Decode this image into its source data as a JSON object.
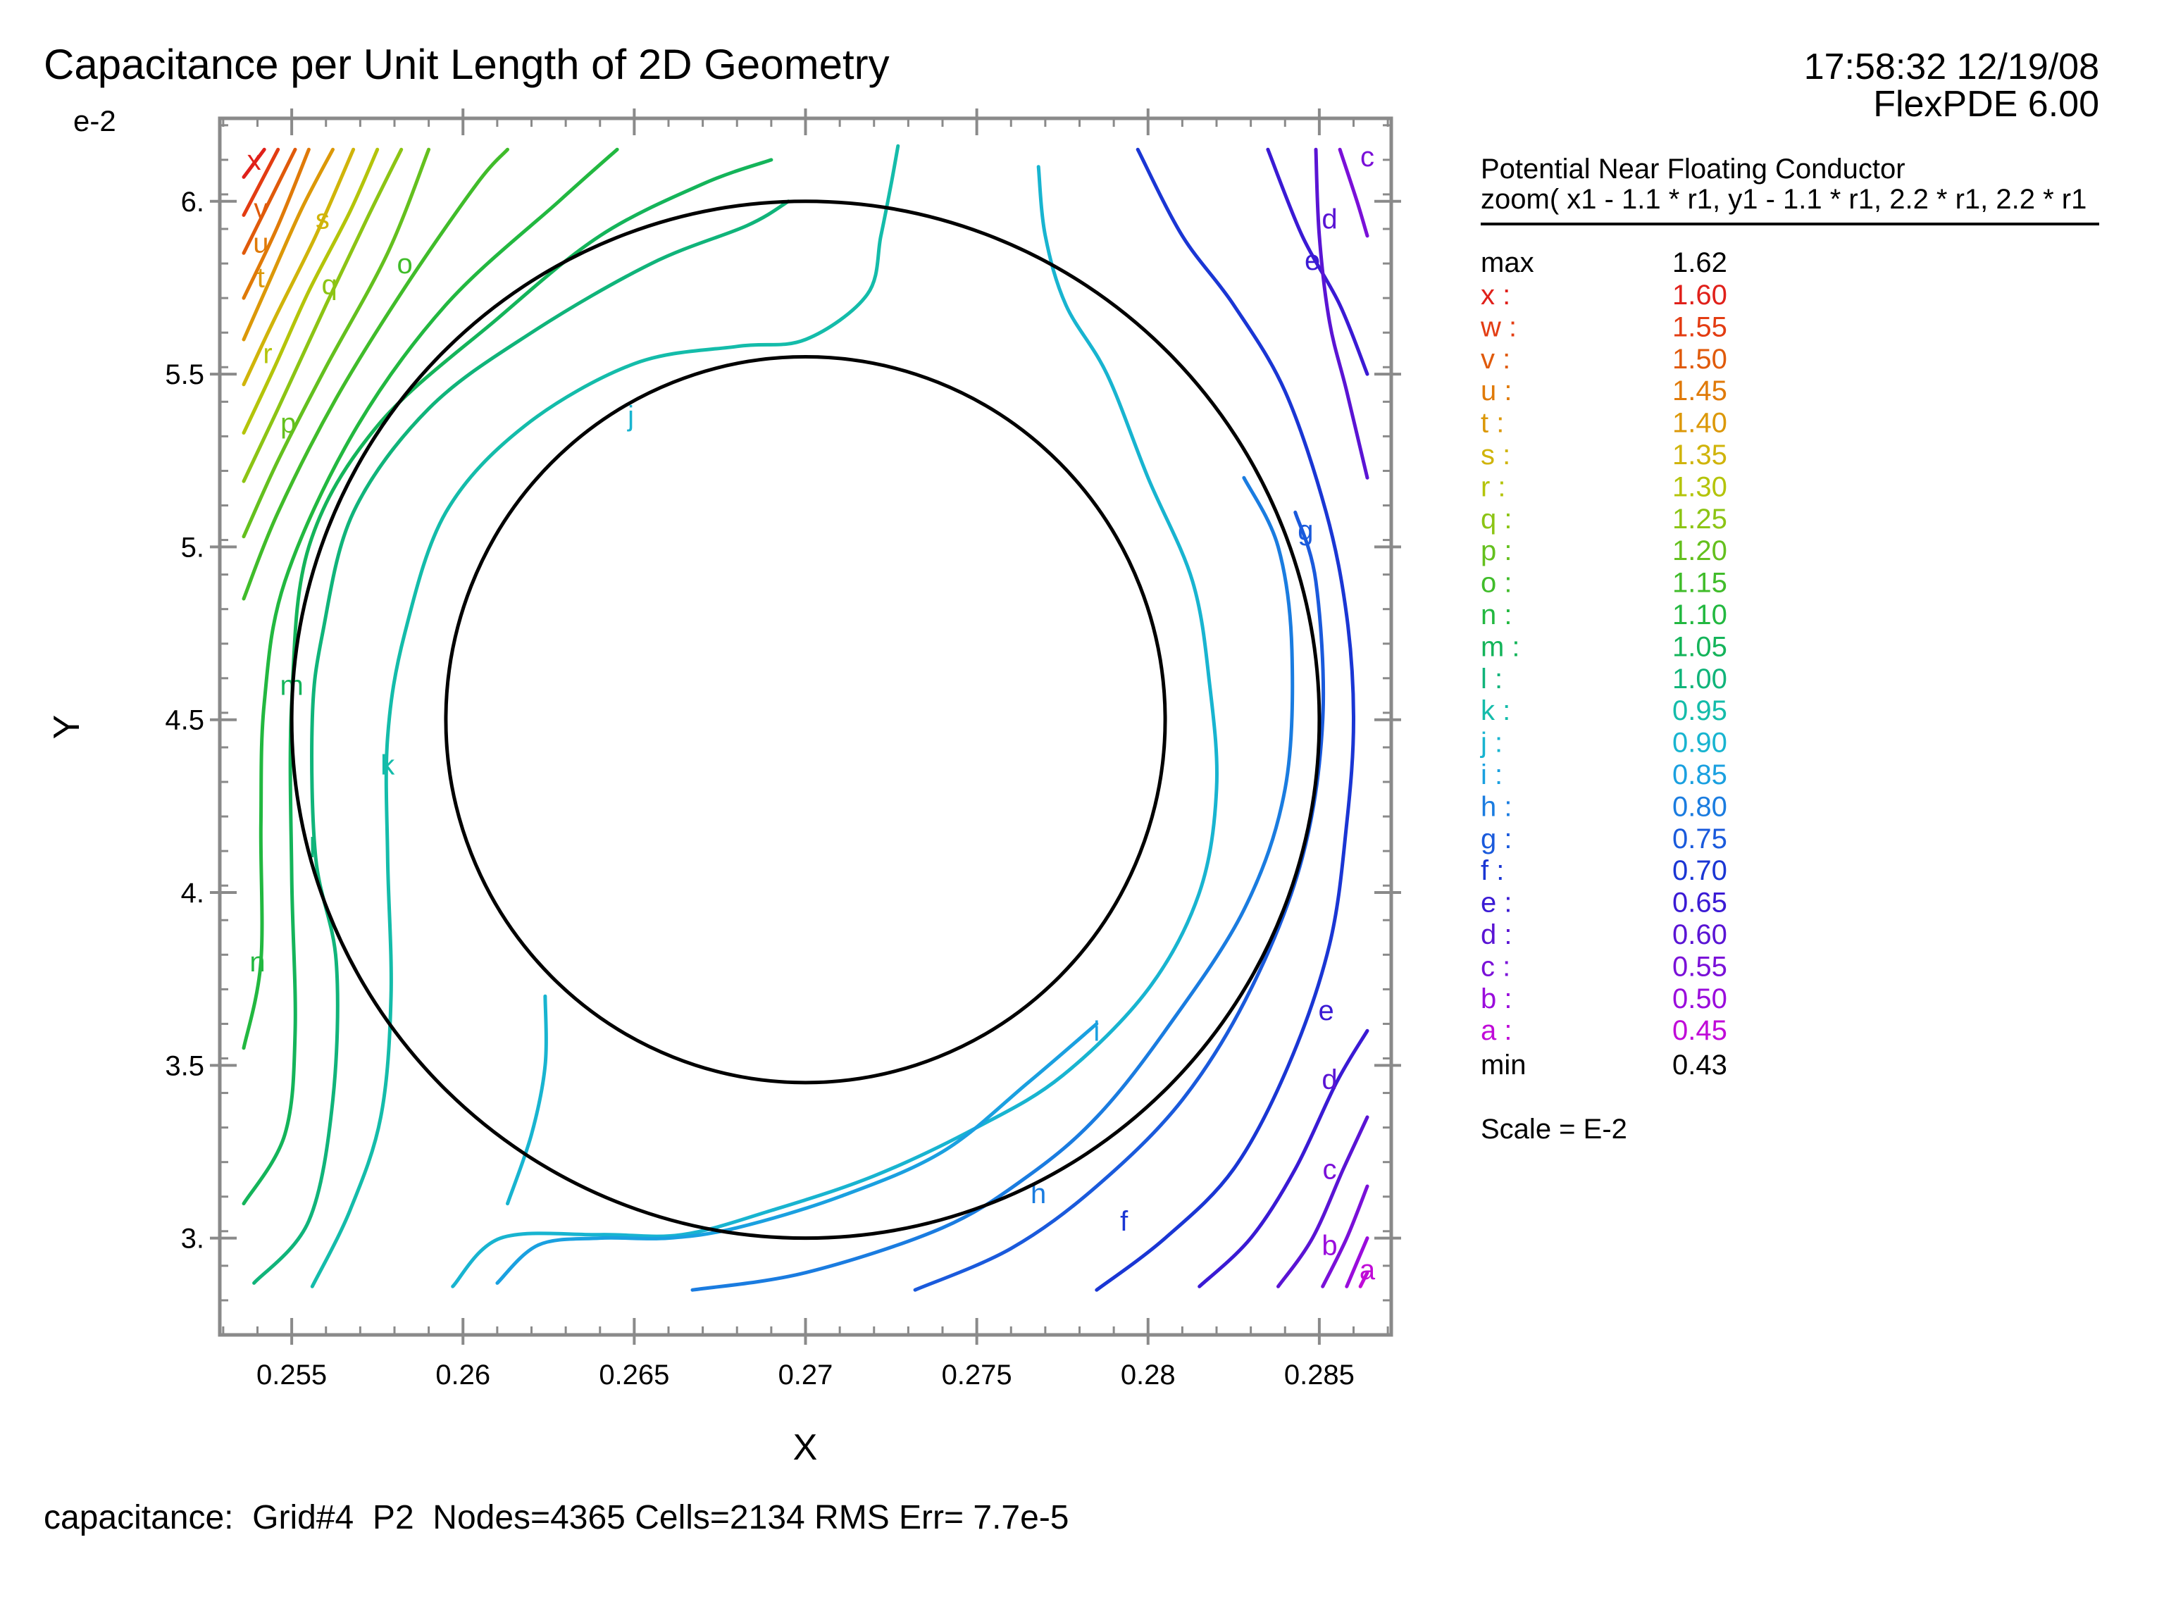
{
  "header": {
    "title": "Capacitance per Unit Length of 2D Geometry",
    "timestamp": "17:58:32 12/19/08",
    "software": "FlexPDE 6.00"
  },
  "footer": {
    "status": "capacitance:  Grid#4  P2  Nodes=4365 Cells=2134 RMS Err= 7.7e-5"
  },
  "legend": {
    "heading": "Potential Near Floating Conductor",
    "subheading": "zoom( x1 - 1.1 * r1, y1 - 1.1 * r1, 2.2 * r1, 2.2 * r1",
    "max_label": "max",
    "max_value": "1.62",
    "min_label": "min",
    "min_value": "0.43",
    "scale": "Scale = E-2",
    "items": [
      {
        "letter": "x",
        "value": "1.60",
        "color": "#e0201a"
      },
      {
        "letter": "w",
        "value": "1.55",
        "color": "#e33c12"
      },
      {
        "letter": "v",
        "value": "1.50",
        "color": "#e05a0a"
      },
      {
        "letter": "u",
        "value": "1.45",
        "color": "#e07a08"
      },
      {
        "letter": "t",
        "value": "1.40",
        "color": "#dc9808"
      },
      {
        "letter": "s",
        "value": "1.35",
        "color": "#d0b40a"
      },
      {
        "letter": "r",
        "value": "1.30",
        "color": "#b4c40a"
      },
      {
        "letter": "q",
        "value": "1.25",
        "color": "#8cc414"
      },
      {
        "letter": "p",
        "value": "1.20",
        "color": "#64c01e"
      },
      {
        "letter": "o",
        "value": "1.15",
        "color": "#40bc2a"
      },
      {
        "letter": "n",
        "value": "1.10",
        "color": "#22b840"
      },
      {
        "letter": "m",
        "value": "1.05",
        "color": "#14b45a"
      },
      {
        "letter": "l",
        "value": "1.00",
        "color": "#10b47a"
      },
      {
        "letter": "k",
        "value": "0.95",
        "color": "#14bcaa"
      },
      {
        "letter": "j",
        "value": "0.90",
        "color": "#18b4d0"
      },
      {
        "letter": "i",
        "value": "0.85",
        "color": "#1aa0e0"
      },
      {
        "letter": "h",
        "value": "0.80",
        "color": "#1a7ce0"
      },
      {
        "letter": "g",
        "value": "0.75",
        "color": "#1a5adc"
      },
      {
        "letter": "f",
        "value": "0.70",
        "color": "#1a36d4"
      },
      {
        "letter": "e",
        "value": "0.65",
        "color": "#3a1ad4"
      },
      {
        "letter": "d",
        "value": "0.60",
        "color": "#5a14d4"
      },
      {
        "letter": "c",
        "value": "0.55",
        "color": "#7a10d8"
      },
      {
        "letter": "b",
        "value": "0.50",
        "color": "#9a0cdc"
      },
      {
        "letter": "a",
        "value": "0.45",
        "color": "#c00ad8"
      }
    ]
  },
  "chart_data": {
    "type": "contour",
    "xlabel": "X",
    "ylabel": "Y",
    "y_exponent_label": "e-2",
    "xlim": [
      0.2529,
      0.2871
    ],
    "ylim": [
      0.0272,
      0.0624
    ],
    "xticks": [
      0.255,
      0.26,
      0.265,
      0.27,
      0.275,
      0.28,
      0.285
    ],
    "xtick_labels": [
      "0.255",
      "0.26",
      "0.265",
      "0.27",
      "0.275",
      "0.28",
      "0.285"
    ],
    "yticks": [
      0.03,
      0.035,
      0.04,
      0.045,
      0.05,
      0.055,
      0.06
    ],
    "ytick_labels": [
      "3.",
      "3.5",
      "4.",
      "4.5",
      "5.",
      "5.5",
      "6."
    ],
    "data_box": {
      "xmin": 0.2536,
      "xmax": 0.2864,
      "ymin": 0.0285,
      "ymax": 0.0616
    },
    "circles": [
      {
        "name": "outer",
        "cx": 0.27,
        "cy": 0.045,
        "r": 0.015
      },
      {
        "name": "inner",
        "cx": 0.27,
        "cy": 0.045,
        "r": 0.0105
      }
    ],
    "contours": [
      {
        "label": "x",
        "pts": [
          [
            0.2536,
            0.0607
          ],
          [
            0.2542,
            0.0615
          ]
        ],
        "labels": [
          [
            0.2539,
            0.0612
          ]
        ]
      },
      {
        "label": "w",
        "pts": [
          [
            0.2536,
            0.0596
          ],
          [
            0.2546,
            0.0615
          ]
        ],
        "labels": []
      },
      {
        "label": "v",
        "pts": [
          [
            0.2536,
            0.0585
          ],
          [
            0.2542,
            0.0597
          ],
          [
            0.2551,
            0.0615
          ]
        ],
        "labels": [
          [
            0.2541,
            0.0598
          ]
        ]
      },
      {
        "label": "u",
        "pts": [
          [
            0.2536,
            0.0572
          ],
          [
            0.2546,
            0.0593
          ],
          [
            0.2555,
            0.0615
          ]
        ],
        "labels": [
          [
            0.2541,
            0.0588
          ]
        ]
      },
      {
        "label": "t",
        "pts": [
          [
            0.2536,
            0.056
          ],
          [
            0.2544,
            0.0578
          ],
          [
            0.2553,
            0.0598
          ],
          [
            0.2562,
            0.0615
          ]
        ],
        "labels": [
          [
            0.2541,
            0.0578
          ]
        ]
      },
      {
        "label": "s",
        "pts": [
          [
            0.2536,
            0.0547
          ],
          [
            0.2545,
            0.0566
          ],
          [
            0.2557,
            0.059
          ],
          [
            0.2568,
            0.0615
          ]
        ],
        "labels": [
          [
            0.2559,
            0.0595
          ]
        ]
      },
      {
        "label": "r",
        "pts": [
          [
            0.2536,
            0.0533
          ],
          [
            0.2545,
            0.0552
          ],
          [
            0.2555,
            0.0574
          ],
          [
            0.2567,
            0.0597
          ],
          [
            0.2575,
            0.0615
          ]
        ],
        "labels": [
          [
            0.2543,
            0.0556
          ]
        ]
      },
      {
        "label": "q",
        "pts": [
          [
            0.2536,
            0.0519
          ],
          [
            0.2546,
            0.054
          ],
          [
            0.256,
            0.057
          ],
          [
            0.2572,
            0.0595
          ],
          [
            0.2582,
            0.0615
          ]
        ],
        "labels": [
          [
            0.2561,
            0.0576
          ]
        ]
      },
      {
        "label": "p",
        "pts": [
          [
            0.2536,
            0.0503
          ],
          [
            0.2546,
            0.0525
          ],
          [
            0.256,
            0.0552
          ],
          [
            0.2578,
            0.0585
          ],
          [
            0.259,
            0.0615
          ]
        ],
        "labels": [
          [
            0.2549,
            0.0536
          ]
        ]
      },
      {
        "label": "o",
        "pts": [
          [
            0.2536,
            0.0485
          ],
          [
            0.2546,
            0.051
          ],
          [
            0.2563,
            0.0543
          ],
          [
            0.2583,
            0.0575
          ],
          [
            0.2604,
            0.0605
          ],
          [
            0.2613,
            0.0615
          ]
        ],
        "labels": [
          [
            0.2583,
            0.0582
          ]
        ]
      },
      {
        "label": "n",
        "pts": [
          [
            0.2536,
            0.0355
          ],
          [
            0.2541,
            0.038
          ],
          [
            0.2541,
            0.042
          ],
          [
            0.2542,
            0.0455
          ],
          [
            0.2548,
            0.049
          ],
          [
            0.2568,
            0.0533
          ],
          [
            0.2595,
            0.057
          ],
          [
            0.2628,
            0.06
          ],
          [
            0.2645,
            0.0615
          ]
        ],
        "labels": [
          [
            0.254,
            0.038
          ]
        ]
      },
      {
        "label": "m",
        "pts": [
          [
            0.2536,
            0.031
          ],
          [
            0.2548,
            0.033
          ],
          [
            0.2551,
            0.036
          ],
          [
            0.255,
            0.0405
          ],
          [
            0.255,
            0.0455
          ],
          [
            0.2555,
            0.05
          ],
          [
            0.2575,
            0.0535
          ],
          [
            0.261,
            0.0566
          ],
          [
            0.264,
            0.059
          ],
          [
            0.267,
            0.0605
          ],
          [
            0.269,
            0.0612
          ]
        ],
        "labels": [
          [
            0.255,
            0.046
          ]
        ]
      },
      {
        "label": "l",
        "pts": [
          [
            0.2539,
            0.0287
          ],
          [
            0.2555,
            0.0305
          ],
          [
            0.2562,
            0.034
          ],
          [
            0.2563,
            0.038
          ],
          [
            0.2557,
            0.041
          ],
          [
            0.2556,
            0.045
          ],
          [
            0.2559,
            0.0475
          ],
          [
            0.2568,
            0.051
          ],
          [
            0.259,
            0.054
          ],
          [
            0.262,
            0.0562
          ],
          [
            0.2655,
            0.0582
          ],
          [
            0.2683,
            0.0593
          ],
          [
            0.2695,
            0.06
          ]
        ],
        "labels": [
          [
            0.2556,
            0.0413
          ]
        ]
      },
      {
        "label": "k",
        "pts": [
          [
            0.2556,
            0.0286
          ],
          [
            0.2567,
            0.0308
          ],
          [
            0.2576,
            0.0335
          ],
          [
            0.2579,
            0.037
          ],
          [
            0.2578,
            0.041
          ],
          [
            0.2578,
            0.0445
          ],
          [
            0.2583,
            0.0475
          ],
          [
            0.2595,
            0.051
          ],
          [
            0.2618,
            0.0535
          ],
          [
            0.265,
            0.0553
          ],
          [
            0.268,
            0.0558
          ],
          [
            0.27,
            0.056
          ],
          [
            0.2718,
            0.0573
          ],
          [
            0.2722,
            0.059
          ],
          [
            0.2725,
            0.0605
          ],
          [
            0.2727,
            0.0616
          ]
        ],
        "labels": [
          [
            0.2578,
            0.0437
          ]
        ]
      },
      {
        "label": "j",
        "pts": [
          [
            0.2597,
            0.0286
          ],
          [
            0.2611,
            0.03
          ],
          [
            0.264,
            0.0301
          ],
          [
            0.2664,
            0.0301
          ],
          [
            0.269,
            0.0308
          ],
          [
            0.272,
            0.0318
          ],
          [
            0.275,
            0.0332
          ],
          [
            0.2775,
            0.0347
          ],
          [
            0.28,
            0.0372
          ],
          [
            0.2815,
            0.04
          ],
          [
            0.282,
            0.043
          ],
          [
            0.2818,
            0.046
          ],
          [
            0.2813,
            0.049
          ],
          [
            0.28,
            0.052
          ],
          [
            0.2788,
            0.055
          ],
          [
            0.2776,
            0.057
          ],
          [
            0.277,
            0.059
          ],
          [
            0.2768,
            0.061
          ]
        ],
        "labels": [
          [
            0.2649,
            0.0538
          ]
        ]
      },
      {
        "label": "i",
        "pts": [
          [
            0.261,
            0.0287
          ],
          [
            0.2622,
            0.0298
          ],
          [
            0.264,
            0.03
          ],
          [
            0.266,
            0.03
          ],
          [
            0.268,
            0.0303
          ],
          [
            0.271,
            0.0312
          ],
          [
            0.274,
            0.0325
          ],
          [
            0.2765,
            0.0345
          ],
          [
            0.2785,
            0.0362
          ]
        ],
        "labels": [
          [
            0.2785,
            0.036
          ]
        ]
      },
      {
        "label": "j2",
        "pts": [
          [
            0.2624,
            0.037
          ],
          [
            0.2624,
            0.035
          ],
          [
            0.262,
            0.033
          ],
          [
            0.2613,
            0.031
          ]
        ],
        "labels": []
      },
      {
        "label": "h",
        "pts": [
          [
            0.2667,
            0.0285
          ],
          [
            0.27,
            0.029
          ],
          [
            0.274,
            0.0303
          ],
          [
            0.2765,
            0.0318
          ],
          [
            0.2785,
            0.0335
          ],
          [
            0.2805,
            0.036
          ],
          [
            0.2828,
            0.0395
          ],
          [
            0.284,
            0.043
          ],
          [
            0.2842,
            0.047
          ],
          [
            0.2838,
            0.05
          ],
          [
            0.2828,
            0.052
          ]
        ],
        "labels": [
          [
            0.2768,
            0.0313
          ]
        ]
      },
      {
        "label": "g",
        "pts": [
          [
            0.2732,
            0.0285
          ],
          [
            0.276,
            0.0297
          ],
          [
            0.2785,
            0.0315
          ],
          [
            0.281,
            0.034
          ],
          [
            0.283,
            0.0372
          ],
          [
            0.2845,
            0.041
          ],
          [
            0.2851,
            0.045
          ],
          [
            0.2849,
            0.049
          ],
          [
            0.2843,
            0.051
          ]
        ],
        "labels": [
          [
            0.2846,
            0.0505
          ]
        ]
      },
      {
        "label": "f",
        "pts": [
          [
            0.2785,
            0.0285
          ],
          [
            0.2805,
            0.03
          ],
          [
            0.2825,
            0.032
          ],
          [
            0.2841,
            0.035
          ],
          [
            0.2853,
            0.0385
          ],
          [
            0.2858,
            0.042
          ],
          [
            0.286,
            0.045
          ],
          [
            0.2858,
            0.048
          ],
          [
            0.2852,
            0.051
          ],
          [
            0.284,
            0.0545
          ],
          [
            0.2825,
            0.057
          ],
          [
            0.281,
            0.059
          ],
          [
            0.2797,
            0.0615
          ]
        ],
        "labels": [
          [
            0.2793,
            0.0305
          ]
        ]
      },
      {
        "label": "e",
        "pts": [
          [
            0.2815,
            0.0286
          ],
          [
            0.283,
            0.03
          ],
          [
            0.2843,
            0.032
          ],
          [
            0.2855,
            0.0345
          ],
          [
            0.2864,
            0.036
          ]
        ],
        "labels": [
          [
            0.2852,
            0.0366
          ]
        ]
      },
      {
        "label": "e2",
        "pts": [
          [
            0.2864,
            0.055
          ],
          [
            0.2856,
            0.057
          ],
          [
            0.2845,
            0.059
          ],
          [
            0.2835,
            0.0615
          ]
        ],
        "labels": [
          [
            0.2848,
            0.0583
          ]
        ]
      },
      {
        "label": "d",
        "pts": [
          [
            0.2838,
            0.0286
          ],
          [
            0.2848,
            0.03
          ],
          [
            0.2857,
            0.032
          ],
          [
            0.2864,
            0.0335
          ]
        ],
        "labels": [
          [
            0.2853,
            0.0346
          ]
        ]
      },
      {
        "label": "d2",
        "pts": [
          [
            0.2864,
            0.052
          ],
          [
            0.2858,
            0.0545
          ],
          [
            0.2853,
            0.0565
          ],
          [
            0.285,
            0.059
          ],
          [
            0.2849,
            0.0615
          ]
        ],
        "labels": [
          [
            0.2853,
            0.0595
          ]
        ]
      },
      {
        "label": "c",
        "pts": [
          [
            0.2851,
            0.0286
          ],
          [
            0.2858,
            0.03
          ],
          [
            0.2864,
            0.0315
          ]
        ],
        "labels": [
          [
            0.2853,
            0.032
          ]
        ]
      },
      {
        "label": "c2",
        "pts": [
          [
            0.2864,
            0.059
          ],
          [
            0.2861,
            0.06
          ],
          [
            0.2856,
            0.0615
          ]
        ],
        "labels": [
          [
            0.2864,
            0.0613
          ]
        ]
      },
      {
        "label": "b",
        "pts": [
          [
            0.2858,
            0.0286
          ],
          [
            0.2864,
            0.03
          ]
        ],
        "labels": [
          [
            0.2853,
            0.0298
          ]
        ]
      },
      {
        "label": "a",
        "pts": [
          [
            0.2862,
            0.0286
          ],
          [
            0.2864,
            0.029
          ]
        ],
        "labels": [
          [
            0.2864,
            0.0291
          ]
        ]
      }
    ]
  }
}
